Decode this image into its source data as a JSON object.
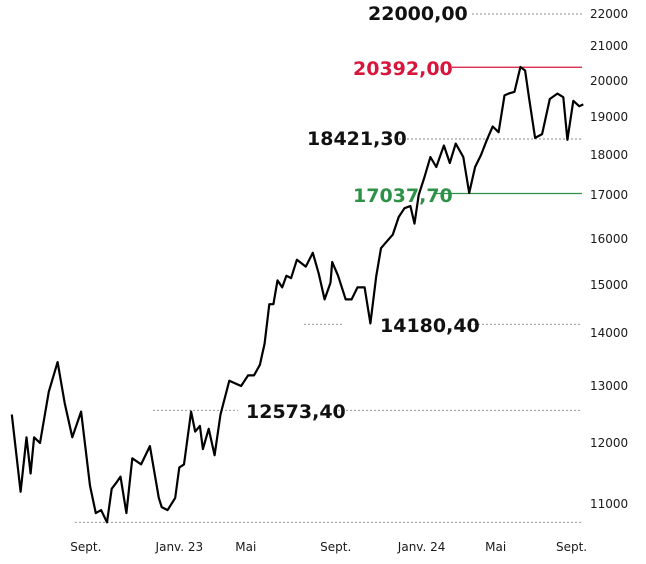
{
  "chart_data": {
    "type": "line",
    "title": "",
    "xlabel": "",
    "ylabel": "",
    "colors": {
      "line": "#000000",
      "high": "#d6163d",
      "low": "#2e9148",
      "guide": "#8a8a8a"
    },
    "ylim": [
      10600,
      22200
    ],
    "y_ticks": [
      {
        "value": 11000,
        "label": "11000"
      },
      {
        "value": 12000,
        "label": "12000"
      },
      {
        "value": 13000,
        "label": "13000"
      },
      {
        "value": 14000,
        "label": "14000"
      },
      {
        "value": 15000,
        "label": "15000"
      },
      {
        "value": 16000,
        "label": "16000"
      },
      {
        "value": 17000,
        "label": "17000"
      },
      {
        "value": 18000,
        "label": "18000"
      },
      {
        "value": 19000,
        "label": "19000"
      },
      {
        "value": 20000,
        "label": "20000"
      },
      {
        "value": 21000,
        "label": "21000"
      },
      {
        "value": 22000,
        "label": "22000"
      }
    ],
    "x_ticks": [
      {
        "label": "Sept.",
        "pos": 0.146
      },
      {
        "label": "Janv. 23",
        "pos": 0.305
      },
      {
        "label": "Mai",
        "pos": 0.418
      },
      {
        "label": "Sept.",
        "pos": 0.571
      },
      {
        "label": "Janv. 24",
        "pos": 0.717
      },
      {
        "label": "Mai",
        "pos": 0.843
      },
      {
        "label": "Sept.",
        "pos": 0.972
      }
    ],
    "annotations": [
      {
        "label": "22000,00",
        "value": 22000,
        "style": "dotted",
        "kind": "plain"
      },
      {
        "label": "20392,00",
        "value": 20392,
        "style": "solid",
        "kind": "high"
      },
      {
        "label": "18421,30",
        "value": 18421.3,
        "style": "dotted",
        "kind": "plain"
      },
      {
        "label": "17037,70",
        "value": 17037.7,
        "style": "solid",
        "kind": "low"
      },
      {
        "label": "14180,40",
        "value": 14180.4,
        "style": "dotted",
        "kind": "plain"
      },
      {
        "label": "12573,40",
        "value": 12573.4,
        "style": "dotted",
        "kind": "plain"
      },
      {
        "label": "",
        "value": 10700,
        "style": "dotted",
        "kind": "plain"
      }
    ],
    "series": [
      {
        "x": [
          0.02,
          0.035,
          0.045,
          0.052,
          0.058,
          0.068,
          0.083,
          0.098,
          0.11,
          0.123,
          0.138,
          0.153,
          0.163,
          0.172,
          0.182,
          0.19,
          0.198,
          0.205,
          0.215,
          0.225,
          0.24,
          0.255,
          0.27,
          0.275,
          0.285,
          0.298,
          0.305,
          0.313,
          0.325,
          0.332,
          0.34,
          0.345,
          0.355,
          0.365,
          0.375,
          0.39,
          0.4,
          0.41,
          0.422,
          0.432,
          0.442,
          0.45,
          0.458,
          0.465,
          0.472,
          0.48,
          0.487,
          0.495,
          0.505,
          0.52,
          0.532,
          0.542,
          0.552,
          0.562,
          0.565,
          0.575,
          0.588,
          0.598,
          0.608,
          0.62,
          0.63,
          0.64,
          0.648,
          0.658,
          0.668,
          0.678,
          0.688,
          0.698,
          0.705,
          0.712,
          0.722,
          0.732,
          0.742,
          0.755,
          0.765,
          0.775,
          0.788,
          0.798,
          0.808,
          0.818,
          0.828,
          0.838,
          0.848,
          0.858,
          0.865,
          0.875,
          0.885,
          0.893,
          0.9,
          0.91,
          0.922,
          0.935,
          0.948,
          0.958,
          0.965,
          0.975,
          0.985,
          0.992
        ],
        "values": [
          12500,
          11200,
          12100,
          11500,
          12100,
          12000,
          12900,
          13450,
          12700,
          12100,
          12550,
          11300,
          10850,
          10900,
          10700,
          11250,
          11350,
          11450,
          10850,
          11750,
          11650,
          11950,
          11100,
          10950,
          10900,
          11100,
          11600,
          11650,
          12550,
          12200,
          12300,
          11900,
          12250,
          11800,
          12500,
          13100,
          13050,
          13000,
          13200,
          13200,
          13400,
          13800,
          14600,
          14600,
          15100,
          14950,
          15200,
          15150,
          15550,
          15400,
          15700,
          15250,
          14700,
          15050,
          15500,
          15200,
          14700,
          14700,
          14950,
          14950,
          14200,
          15200,
          15800,
          15950,
          16100,
          16500,
          16700,
          16750,
          16350,
          17000,
          17450,
          17950,
          17700,
          18250,
          17800,
          18300,
          17950,
          17050,
          17700,
          18000,
          18400,
          18750,
          18600,
          19600,
          19650,
          19700,
          20400,
          20300,
          19500,
          18450,
          18550,
          19500,
          19650,
          19550,
          18400,
          19450,
          19300,
          19350
        ]
      }
    ]
  }
}
